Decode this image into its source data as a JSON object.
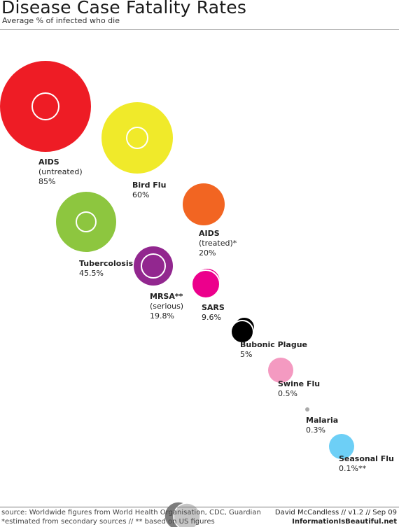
{
  "title": "Disease Case Fatality Rates",
  "subtitle": "Average % of infected who die",
  "chart_data": {
    "type": "bubble",
    "title": "Disease Case Fatality Rates",
    "subtitle": "Average % of infected who die",
    "series": [
      {
        "name": "AIDS",
        "qualifier": "(untreated)",
        "value_label": "85%",
        "value": 85,
        "color": "#ee1c25"
      },
      {
        "name": "Bird Flu",
        "qualifier": "",
        "value_label": "60%",
        "value": 60,
        "color": "#f0ea2a"
      },
      {
        "name": "AIDS",
        "qualifier": "(treated)*",
        "value_label": "20%",
        "value": 20,
        "color": "#f26522"
      },
      {
        "name": "Tubercolosis",
        "qualifier": "",
        "value_label": "45.5%",
        "value": 45.5,
        "color": "#8dc63f"
      },
      {
        "name": "MRSA**",
        "qualifier": "(serious)",
        "value_label": "19.8%",
        "value": 19.8,
        "color": "#92278f"
      },
      {
        "name": "SARS",
        "qualifier": "",
        "value_label": "9.6%",
        "value": 9.6,
        "color": "#ec008c"
      },
      {
        "name": "Bubonic Plague",
        "qualifier": "",
        "value_label": "5%",
        "value": 5,
        "color": "#000000"
      },
      {
        "name": "Swine Flu",
        "qualifier": "",
        "value_label": "0.5%",
        "value": 0.5,
        "color": "#f49ac1"
      },
      {
        "name": "Malaria",
        "qualifier": "",
        "value_label": "0.3%",
        "value": 0.3,
        "color": "#aaaaaa"
      },
      {
        "name": "Seasonal Flu",
        "qualifier": "",
        "value_label": "0.1%**",
        "value": 0.1,
        "color": "#6dcff6"
      }
    ]
  },
  "footer": {
    "source": "source: Worldwide figures from World Health Organisation, CDC, Guardian",
    "note": "*estimated from secondary sources // ** based on US figures",
    "credit": "David McCandless // v1.2 // Sep 09",
    "site": "InformationIsBeautiful.net"
  }
}
